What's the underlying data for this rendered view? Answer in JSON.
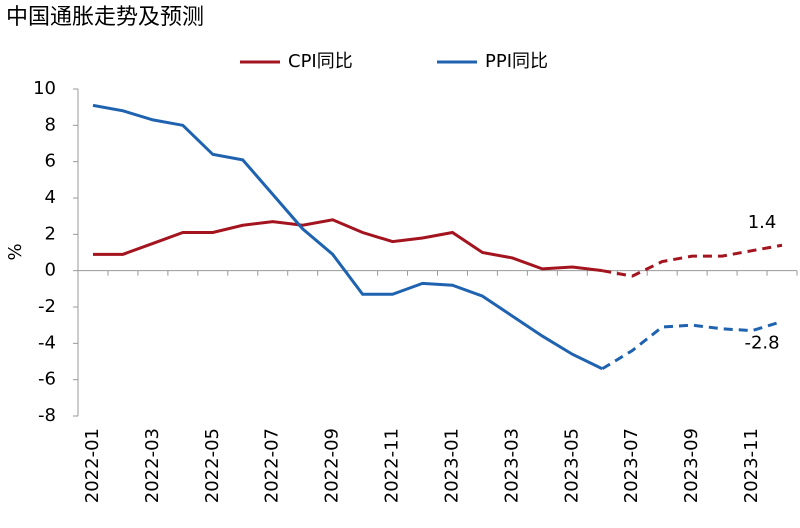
{
  "chart_data": {
    "type": "line",
    "title": "中国通胀走势及预测",
    "ylabel": "%",
    "categories": [
      "2022-01",
      null,
      "2022-03",
      null,
      "2022-05",
      null,
      "2022-07",
      null,
      "2022-09",
      null,
      "2022-11",
      null,
      "2023-01",
      null,
      "2023-03",
      null,
      "2023-05",
      null,
      "2023-07",
      null,
      "2023-09",
      null,
      "2023-11",
      null
    ],
    "series": [
      {
        "name": "CPI同比",
        "color": "#a3141f",
        "values": [
          0.9,
          0.9,
          1.5,
          2.1,
          2.1,
          2.5,
          2.7,
          2.5,
          2.8,
          2.1,
          1.6,
          1.8,
          2.1,
          1.0,
          0.7,
          0.1,
          0.2,
          0.0,
          -0.3,
          0.5,
          0.8,
          0.8,
          1.1,
          1.4
        ]
      },
      {
        "name": "PPI同比",
        "color": "#1f63b0",
        "values": [
          9.1,
          8.8,
          8.3,
          8.0,
          6.4,
          6.1,
          4.2,
          2.3,
          0.9,
          -1.3,
          -1.3,
          -0.7,
          -0.8,
          -1.4,
          -2.5,
          -3.6,
          -4.6,
          -5.4,
          -4.4,
          -3.1,
          -3.0,
          -3.2,
          -3.3,
          -2.8
        ]
      }
    ],
    "dashed_from_index": 17,
    "label_last": true,
    "ylim": [
      -8,
      10
    ],
    "yticks": [
      -8,
      -6,
      -4,
      -2,
      0,
      2,
      4,
      6,
      8,
      10
    ],
    "grid": false,
    "legend": "top"
  }
}
